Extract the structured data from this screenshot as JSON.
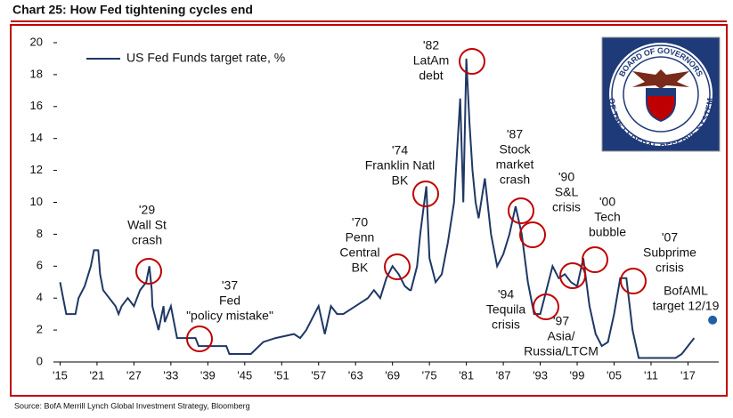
{
  "chart_data": {
    "type": "line",
    "title": "Chart 25: How Fed tightening cycles end",
    "source": "Source: BofA Merrill Lynch Global Investment Strategy, Bloomberg",
    "seal_text": [
      "BOARD OF GOVERNORS",
      "OF THE FEDERAL RESERVE SYSTEM"
    ],
    "xlim": [
      1914.5,
      2022
    ],
    "xticks": [
      {
        "value": 1915,
        "label": "'15"
      },
      {
        "value": 1921,
        "label": "'21"
      },
      {
        "value": 1927,
        "label": "'27"
      },
      {
        "value": 1933,
        "label": "'33"
      },
      {
        "value": 1939,
        "label": "'39"
      },
      {
        "value": 1945,
        "label": "'45"
      },
      {
        "value": 1951,
        "label": "'51"
      },
      {
        "value": 1957,
        "label": "'57"
      },
      {
        "value": 1963,
        "label": "'63"
      },
      {
        "value": 1969,
        "label": "'69"
      },
      {
        "value": 1975,
        "label": "'75"
      },
      {
        "value": 1981,
        "label": "'81"
      },
      {
        "value": 1987,
        "label": "'87"
      },
      {
        "value": 1993,
        "label": "'93"
      },
      {
        "value": 1999,
        "label": "'99"
      },
      {
        "value": 2005,
        "label": "'05"
      },
      {
        "value": 2011,
        "label": "'11"
      },
      {
        "value": 2017,
        "label": "'17"
      }
    ],
    "ylim": [
      0,
      20
    ],
    "yticks": [
      0,
      2,
      4,
      6,
      8,
      10,
      12,
      14,
      16,
      18,
      20
    ],
    "legend": "top-left",
    "series": [
      {
        "name": "US Fed Funds target rate, %",
        "color": "#1f3864",
        "x": [
          1915,
          1915.5,
          1916,
          1917.5,
          1918,
          1919,
          1920,
          1920.5,
          1921.2,
          1921.5,
          1922,
          1923,
          1924,
          1924.5,
          1925,
          1926,
          1927,
          1928,
          1929,
          1929.5,
          1929.9,
          1930,
          1931,
          1931.8,
          1932,
          1933,
          1933.5,
          1934,
          1937,
          1937.5,
          1942,
          1942.5,
          1946,
          1948,
          1950,
          1953,
          1954,
          1955,
          1956,
          1957,
          1958,
          1959,
          1960,
          1961,
          1963,
          1965,
          1966,
          1967,
          1968,
          1969,
          1970,
          1971,
          1971.8,
          1972,
          1973,
          1973.5,
          1974,
          1974.5,
          1975,
          1976,
          1977,
          1978,
          1979,
          1980,
          1980.5,
          1981,
          1981.5,
          1982,
          1982.5,
          1983,
          1984,
          1985,
          1986,
          1987,
          1988,
          1989,
          1990,
          1991,
          1992,
          1993,
          1994,
          1995,
          1996,
          1997,
          1998,
          1999,
          2000,
          2001,
          2002,
          2003,
          2004,
          2005,
          2006,
          2007,
          2008,
          2009,
          2015,
          2016,
          2017,
          2018
        ],
        "values": [
          5,
          4,
          3,
          3,
          4,
          4.75,
          6,
          7,
          7,
          5.5,
          4.5,
          4,
          3.5,
          3,
          3.5,
          4,
          3.5,
          4.5,
          5,
          6,
          4.5,
          3.5,
          2,
          3.5,
          2.5,
          3.5,
          2.5,
          1.5,
          1.5,
          1,
          1,
          0.5,
          0.5,
          1.25,
          1.5,
          1.75,
          1.5,
          2,
          2.75,
          3.5,
          1.75,
          3.5,
          3,
          3,
          3.5,
          4,
          4.5,
          4,
          5.25,
          6,
          5.5,
          4.75,
          4.5,
          4.5,
          6,
          8,
          9.5,
          11,
          6.5,
          5,
          5.5,
          7.5,
          10,
          16.5,
          10,
          19,
          15,
          12,
          10,
          9,
          11.5,
          8,
          6,
          6.75,
          8,
          9.75,
          8,
          5,
          3,
          3,
          4.5,
          6,
          5.25,
          5.5,
          5,
          4.75,
          6.5,
          3.5,
          1.75,
          1,
          1.25,
          3,
          5.25,
          5.25,
          2,
          0.25,
          0.25,
          0.5,
          1,
          1.5
        ]
      },
      {
        "type": "scatter",
        "name": "BofAML target 12/19",
        "color": "#1f5fa8",
        "x": [
          2021
        ],
        "values": [
          2.625
        ]
      }
    ],
    "annotations": [
      [
        "'29",
        "Wall St",
        "crash"
      ],
      [
        "'37",
        "Fed",
        "\"policy mistake\""
      ],
      [
        "'70",
        "Penn",
        "Central",
        "BK"
      ],
      [
        "'74",
        "Franklin Natl",
        "BK"
      ],
      [
        "'82",
        "LatAm",
        "debt"
      ],
      [
        "'87",
        "Stock",
        "market",
        "crash"
      ],
      [
        "'90",
        "S&L",
        "crisis"
      ],
      [
        "'00",
        "Tech",
        "bubble"
      ],
      [
        "'07",
        "Subprime",
        "crisis"
      ],
      [
        "'94",
        "Tequila",
        "crisis"
      ],
      [
        "'97",
        "Asia/",
        "Russia/LTCM"
      ],
      [
        "BofAML",
        "target 12/19"
      ]
    ]
  }
}
